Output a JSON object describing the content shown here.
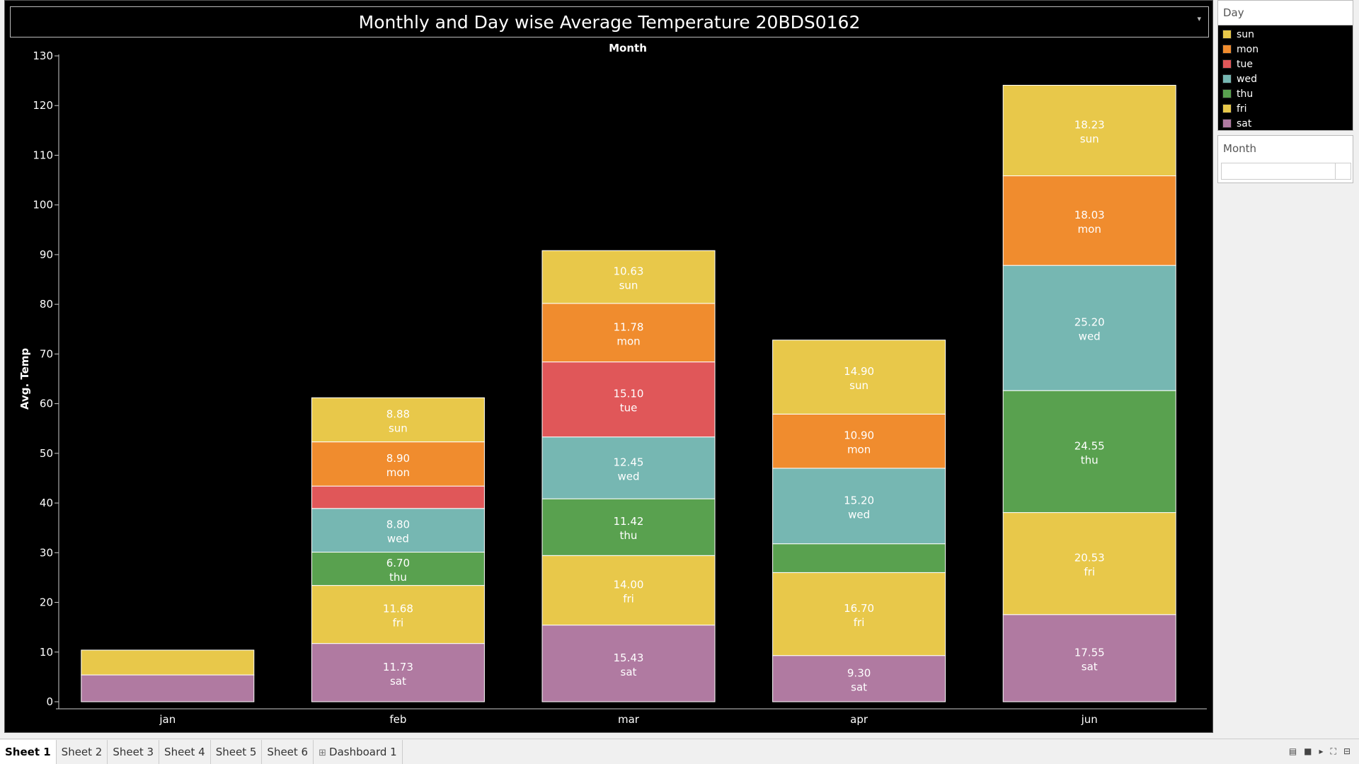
{
  "title": "Monthly and Day wise Average Temperature 20BDS0162",
  "chart_data": {
    "type": "bar",
    "stacked": true,
    "top_axis_label": "Month",
    "ylabel": "Avg. Temp",
    "ylim": [
      0,
      130
    ],
    "yticks": [
      0,
      10,
      20,
      30,
      40,
      50,
      60,
      70,
      80,
      90,
      100,
      110,
      120,
      130
    ],
    "categories": [
      "jan",
      "feb",
      "mar",
      "apr",
      "jun"
    ],
    "stack_order": [
      "sat",
      "fri",
      "thu",
      "wed",
      "tue",
      "mon",
      "sun"
    ],
    "series": [
      {
        "name": "sun",
        "color": "#E8C84A",
        "values": [
          null,
          8.88,
          10.63,
          14.9,
          18.23
        ]
      },
      {
        "name": "mon",
        "color": "#F08C2E",
        "values": [
          null,
          8.9,
          11.78,
          10.9,
          18.03
        ]
      },
      {
        "name": "tue",
        "color": "#E05759",
        "values": [
          null,
          4.5,
          15.1,
          null,
          null
        ]
      },
      {
        "name": "wed",
        "color": "#76B7B2",
        "values": [
          null,
          8.8,
          12.45,
          15.2,
          25.2
        ]
      },
      {
        "name": "thu",
        "color": "#59A14F",
        "values": [
          null,
          6.7,
          11.42,
          5.8,
          24.55
        ]
      },
      {
        "name": "fri",
        "color": "#E8C84A",
        "values": [
          5.0,
          11.68,
          14.0,
          16.7,
          20.53
        ]
      },
      {
        "name": "sat",
        "color": "#B07AA1",
        "values": [
          5.4,
          11.73,
          15.43,
          9.3,
          17.55
        ]
      }
    ],
    "data_labels": {
      "feb": [
        "sun",
        "mon",
        "wed",
        "thu",
        "fri",
        "sat"
      ],
      "mar": [
        "sun",
        "mon",
        "tue",
        "wed",
        "thu",
        "fri",
        "sat"
      ],
      "apr": [
        "sun",
        "mon",
        "wed",
        "fri",
        "sat"
      ],
      "jun": [
        "sun",
        "mon",
        "wed",
        "thu",
        "fri",
        "sat"
      ]
    },
    "grid": false,
    "legend_position": "right"
  },
  "legend": {
    "title": "Day",
    "items": [
      {
        "label": "sun",
        "color": "#E8C84A"
      },
      {
        "label": "mon",
        "color": "#F08C2E"
      },
      {
        "label": "tue",
        "color": "#E05759"
      },
      {
        "label": "wed",
        "color": "#76B7B2"
      },
      {
        "label": "thu",
        "color": "#59A14F"
      },
      {
        "label": "fri",
        "color": "#E8C84A"
      },
      {
        "label": "sat",
        "color": "#B07AA1"
      }
    ]
  },
  "filter": {
    "title": "Month",
    "value": ""
  },
  "tabs": [
    {
      "label": "Sheet 1",
      "active": true
    },
    {
      "label": "Sheet 2",
      "active": false
    },
    {
      "label": "Sheet 3",
      "active": false
    },
    {
      "label": "Sheet 4",
      "active": false
    },
    {
      "label": "Sheet 5",
      "active": false
    },
    {
      "label": "Sheet 6",
      "active": false
    },
    {
      "label": "Dashboard 1",
      "active": false,
      "icon": "dashboard-icon"
    }
  ]
}
